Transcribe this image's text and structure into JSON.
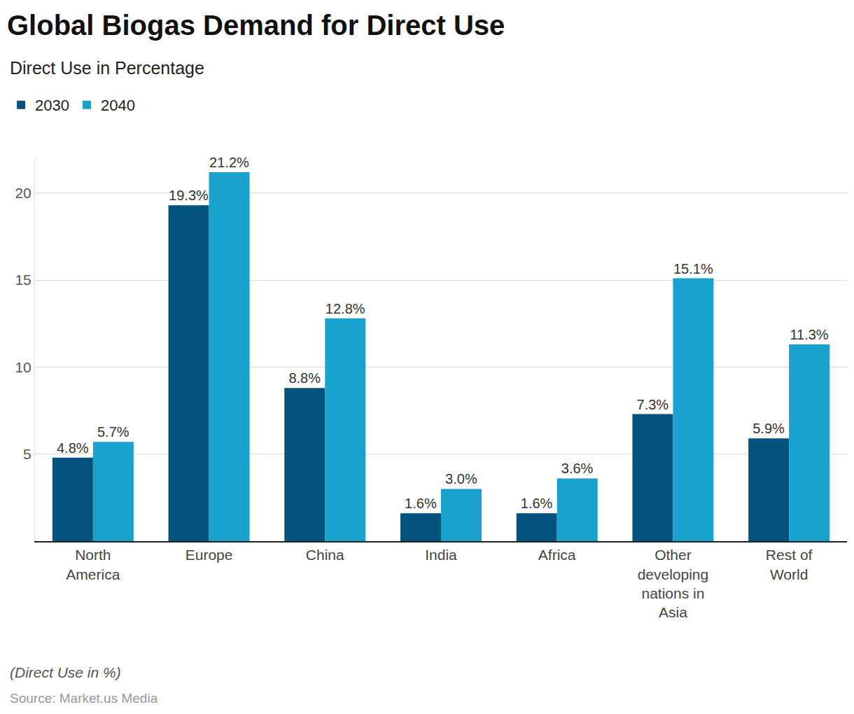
{
  "chart_data": {
    "type": "bar",
    "title": "Global Biogas Demand for Direct Use",
    "subtitle": "Direct Use in Percentage",
    "footnote": "(Direct Use in %)",
    "source": "Source: Market.us Media",
    "categories": [
      "North America",
      "Europe",
      "China",
      "India",
      "Africa",
      "Other developing nations in Asia",
      "Rest of World"
    ],
    "series": [
      {
        "name": "2030",
        "color": "#03537c",
        "values": [
          4.8,
          19.3,
          8.8,
          1.6,
          1.6,
          7.3,
          5.9
        ],
        "value_labels": [
          "4.8%",
          "19.3%",
          "8.8%",
          "1.6%",
          "1.6%",
          "7.3%",
          "5.9%"
        ]
      },
      {
        "name": "2040",
        "color": "#1aa2cf",
        "values": [
          5.7,
          21.2,
          12.8,
          3.0,
          3.6,
          15.1,
          11.3
        ],
        "value_labels": [
          "5.7%",
          "21.2%",
          "12.8%",
          "3.0%",
          "3.6%",
          "15.1%",
          "11.3%"
        ]
      }
    ],
    "ylim": [
      0,
      22
    ],
    "yticks": [
      5,
      10,
      15,
      20
    ],
    "grid": true,
    "data_labels": true,
    "legend": "top left"
  }
}
